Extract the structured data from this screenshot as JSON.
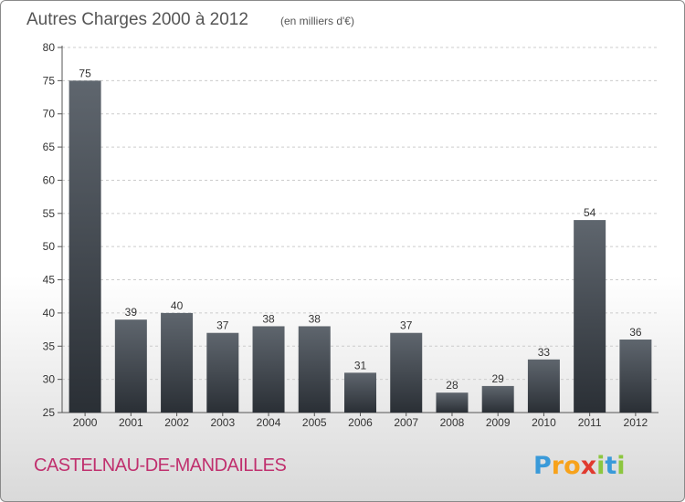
{
  "title": "Autres Charges 2000 à 2012",
  "subtitle": "(en milliers d'€)",
  "commune": "CASTELNAU-DE-MANDAILLES",
  "logo": {
    "letters": [
      "P",
      "r",
      "o",
      "x",
      "i",
      "t",
      "i"
    ],
    "colors": [
      "#3a9ad9",
      "#f7a21b",
      "#f7a21b",
      "#e03a2f",
      "#8cc63f",
      "#3a9ad9",
      "#8cc63f"
    ]
  },
  "colors": {
    "bar_top": "#5f666e",
    "bar_bottom": "#2a2f35",
    "grid": "#cccccc",
    "commune": "#c0306e"
  },
  "chart_data": {
    "type": "bar",
    "categories": [
      "2000",
      "2001",
      "2002",
      "2003",
      "2004",
      "2005",
      "2006",
      "2007",
      "2008",
      "2009",
      "2010",
      "2011",
      "2012"
    ],
    "values": [
      75,
      39,
      40,
      37,
      38,
      38,
      31,
      37,
      28,
      29,
      33,
      54,
      36
    ],
    "ylim": [
      25,
      80
    ],
    "yticks": [
      25,
      30,
      35,
      40,
      45,
      50,
      55,
      60,
      65,
      70,
      75,
      80
    ],
    "grid": "horizontal-dashed",
    "data_labels": true
  }
}
